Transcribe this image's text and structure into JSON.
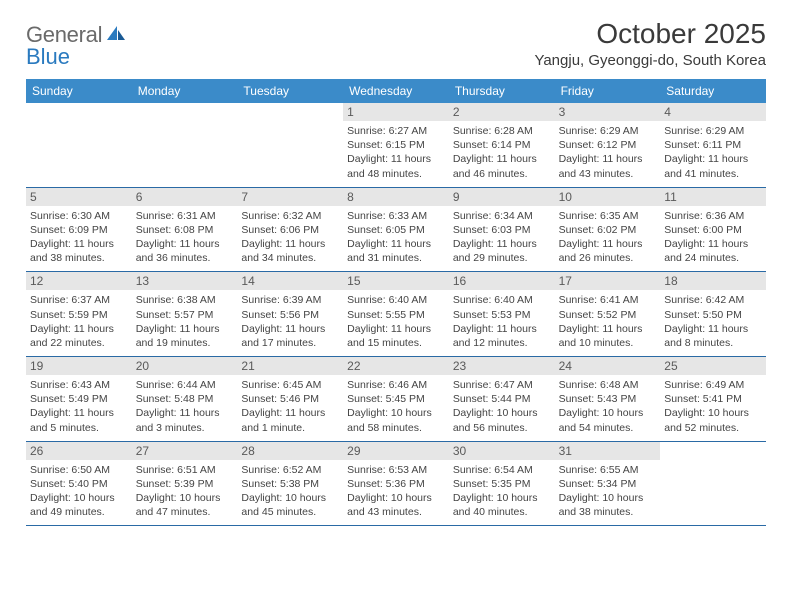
{
  "logo": {
    "gray": "General",
    "blue": "Blue"
  },
  "title": "October 2025",
  "location": "Yangju, Gyeonggi-do, South Korea",
  "colors": {
    "header_bg": "#3b8bc9",
    "header_text": "#ffffff",
    "daynum_bg": "#e6e6e6",
    "daynum_text": "#5a5a5a",
    "border": "#2a6aa5",
    "body_text": "#444444",
    "title_text": "#3a3a3a",
    "logo_gray": "#6a6a6a",
    "logo_blue": "#2a7abf"
  },
  "daynames": [
    "Sunday",
    "Monday",
    "Tuesday",
    "Wednesday",
    "Thursday",
    "Friday",
    "Saturday"
  ],
  "weeks": [
    [
      null,
      null,
      null,
      {
        "n": "1",
        "sr": "6:27 AM",
        "ss": "6:15 PM",
        "dl": "11 hours and 48 minutes."
      },
      {
        "n": "2",
        "sr": "6:28 AM",
        "ss": "6:14 PM",
        "dl": "11 hours and 46 minutes."
      },
      {
        "n": "3",
        "sr": "6:29 AM",
        "ss": "6:12 PM",
        "dl": "11 hours and 43 minutes."
      },
      {
        "n": "4",
        "sr": "6:29 AM",
        "ss": "6:11 PM",
        "dl": "11 hours and 41 minutes."
      }
    ],
    [
      {
        "n": "5",
        "sr": "6:30 AM",
        "ss": "6:09 PM",
        "dl": "11 hours and 38 minutes."
      },
      {
        "n": "6",
        "sr": "6:31 AM",
        "ss": "6:08 PM",
        "dl": "11 hours and 36 minutes."
      },
      {
        "n": "7",
        "sr": "6:32 AM",
        "ss": "6:06 PM",
        "dl": "11 hours and 34 minutes."
      },
      {
        "n": "8",
        "sr": "6:33 AM",
        "ss": "6:05 PM",
        "dl": "11 hours and 31 minutes."
      },
      {
        "n": "9",
        "sr": "6:34 AM",
        "ss": "6:03 PM",
        "dl": "11 hours and 29 minutes."
      },
      {
        "n": "10",
        "sr": "6:35 AM",
        "ss": "6:02 PM",
        "dl": "11 hours and 26 minutes."
      },
      {
        "n": "11",
        "sr": "6:36 AM",
        "ss": "6:00 PM",
        "dl": "11 hours and 24 minutes."
      }
    ],
    [
      {
        "n": "12",
        "sr": "6:37 AM",
        "ss": "5:59 PM",
        "dl": "11 hours and 22 minutes."
      },
      {
        "n": "13",
        "sr": "6:38 AM",
        "ss": "5:57 PM",
        "dl": "11 hours and 19 minutes."
      },
      {
        "n": "14",
        "sr": "6:39 AM",
        "ss": "5:56 PM",
        "dl": "11 hours and 17 minutes."
      },
      {
        "n": "15",
        "sr": "6:40 AM",
        "ss": "5:55 PM",
        "dl": "11 hours and 15 minutes."
      },
      {
        "n": "16",
        "sr": "6:40 AM",
        "ss": "5:53 PM",
        "dl": "11 hours and 12 minutes."
      },
      {
        "n": "17",
        "sr": "6:41 AM",
        "ss": "5:52 PM",
        "dl": "11 hours and 10 minutes."
      },
      {
        "n": "18",
        "sr": "6:42 AM",
        "ss": "5:50 PM",
        "dl": "11 hours and 8 minutes."
      }
    ],
    [
      {
        "n": "19",
        "sr": "6:43 AM",
        "ss": "5:49 PM",
        "dl": "11 hours and 5 minutes."
      },
      {
        "n": "20",
        "sr": "6:44 AM",
        "ss": "5:48 PM",
        "dl": "11 hours and 3 minutes."
      },
      {
        "n": "21",
        "sr": "6:45 AM",
        "ss": "5:46 PM",
        "dl": "11 hours and 1 minute."
      },
      {
        "n": "22",
        "sr": "6:46 AM",
        "ss": "5:45 PM",
        "dl": "10 hours and 58 minutes."
      },
      {
        "n": "23",
        "sr": "6:47 AM",
        "ss": "5:44 PM",
        "dl": "10 hours and 56 minutes."
      },
      {
        "n": "24",
        "sr": "6:48 AM",
        "ss": "5:43 PM",
        "dl": "10 hours and 54 minutes."
      },
      {
        "n": "25",
        "sr": "6:49 AM",
        "ss": "5:41 PM",
        "dl": "10 hours and 52 minutes."
      }
    ],
    [
      {
        "n": "26",
        "sr": "6:50 AM",
        "ss": "5:40 PM",
        "dl": "10 hours and 49 minutes."
      },
      {
        "n": "27",
        "sr": "6:51 AM",
        "ss": "5:39 PM",
        "dl": "10 hours and 47 minutes."
      },
      {
        "n": "28",
        "sr": "6:52 AM",
        "ss": "5:38 PM",
        "dl": "10 hours and 45 minutes."
      },
      {
        "n": "29",
        "sr": "6:53 AM",
        "ss": "5:36 PM",
        "dl": "10 hours and 43 minutes."
      },
      {
        "n": "30",
        "sr": "6:54 AM",
        "ss": "5:35 PM",
        "dl": "10 hours and 40 minutes."
      },
      {
        "n": "31",
        "sr": "6:55 AM",
        "ss": "5:34 PM",
        "dl": "10 hours and 38 minutes."
      },
      null
    ]
  ],
  "labels": {
    "sunrise": "Sunrise:",
    "sunset": "Sunset:",
    "daylight": "Daylight:"
  }
}
